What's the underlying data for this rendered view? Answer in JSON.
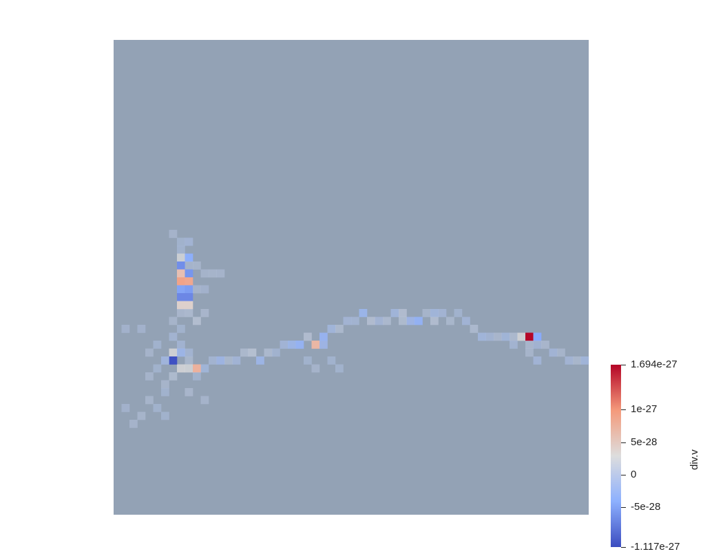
{
  "render": {
    "field_name": "div.v",
    "background_color": "#ffffff",
    "base_cell_color": "#93a2b5",
    "grid_cells": 60
  },
  "colorbar": {
    "title": "div.v",
    "max": 1.694e-27,
    "min": -1.117e-27,
    "colormap": "cool-to-warm",
    "stops": [
      "#3b4cc0",
      "#8db0fe",
      "#dddddd",
      "#f49a7b",
      "#b40426"
    ],
    "ticks": [
      {
        "value": 1.694e-27,
        "label": "1.694e-27"
      },
      {
        "value": 1e-27,
        "label": "1e-27"
      },
      {
        "value": 5e-28,
        "label": "5e-28"
      },
      {
        "value": 0,
        "label": "0"
      },
      {
        "value": -5e-28,
        "label": "-5e-28"
      },
      {
        "value": -1.117e-27,
        "label": "-1.117e-27"
      }
    ]
  },
  "features": [
    {
      "col": 8,
      "row": 25,
      "value": -5e-29
    },
    {
      "col": 8,
      "row": 26,
      "value": -6e-29
    },
    {
      "col": 9,
      "row": 25,
      "value": -1e-28
    },
    {
      "col": 8,
      "row": 27,
      "value": 2.8e-28
    },
    {
      "col": 9,
      "row": 27,
      "value": -4.2e-28
    },
    {
      "col": 8,
      "row": 28,
      "value": -6.5e-28
    },
    {
      "col": 9,
      "row": 28,
      "value": 4e-29
    },
    {
      "col": 8,
      "row": 29,
      "value": 6e-28
    },
    {
      "col": 9,
      "row": 29,
      "value": -6e-28
    },
    {
      "col": 8,
      "row": 30,
      "value": 9e-28
    },
    {
      "col": 9,
      "row": 30,
      "value": 8.5e-28
    },
    {
      "col": 8,
      "row": 31,
      "value": -5e-28
    },
    {
      "col": 9,
      "row": 31,
      "value": -5.5e-28
    },
    {
      "col": 8,
      "row": 32,
      "value": -7e-28
    },
    {
      "col": 9,
      "row": 32,
      "value": -7e-28
    },
    {
      "col": 8,
      "row": 33,
      "value": 4e-28
    },
    {
      "col": 9,
      "row": 33,
      "value": 4e-28
    },
    {
      "col": 8,
      "row": 34,
      "value": 6e-29
    },
    {
      "col": 9,
      "row": 34,
      "value": 8e-29
    },
    {
      "col": 10,
      "row": 35,
      "value": 1.4e-28
    },
    {
      "col": 11,
      "row": 34,
      "value": 6e-29
    },
    {
      "col": 7,
      "row": 37,
      "value": -8e-29
    },
    {
      "col": 8,
      "row": 38,
      "value": -9e-29
    },
    {
      "col": 7,
      "row": 39,
      "value": 3e-28
    },
    {
      "col": 8,
      "row": 39,
      "value": -2.6e-28
    },
    {
      "col": 9,
      "row": 39,
      "value": -8e-29
    },
    {
      "col": 7,
      "row": 40,
      "value": -1.08e-27
    },
    {
      "col": 6,
      "row": 40,
      "value": -1.8e-28
    },
    {
      "col": 9,
      "row": 40,
      "value": 7e-29
    },
    {
      "col": 8,
      "row": 41,
      "value": 3e-28
    },
    {
      "col": 9,
      "row": 41,
      "value": 2.8e-28
    },
    {
      "col": 10,
      "row": 41,
      "value": 7.5e-28
    },
    {
      "col": 11,
      "row": 41,
      "value": -1.4e-28
    },
    {
      "col": 12,
      "row": 40,
      "value": -8e-29
    },
    {
      "col": 13,
      "row": 40,
      "value": -2.2e-28
    },
    {
      "col": 14,
      "row": 40,
      "value": 7e-29
    },
    {
      "col": 15,
      "row": 40,
      "value": -1.2e-28
    },
    {
      "col": 16,
      "row": 39,
      "value": 9e-29
    },
    {
      "col": 17,
      "row": 39,
      "value": 1.5e-28
    },
    {
      "col": 18,
      "row": 40,
      "value": -2.5e-28
    },
    {
      "col": 19,
      "row": 39,
      "value": 8e-29
    },
    {
      "col": 20,
      "row": 39,
      "value": -7e-29
    },
    {
      "col": 21,
      "row": 38,
      "value": -1.2e-28
    },
    {
      "col": 22,
      "row": 38,
      "value": -2.5e-28
    },
    {
      "col": 23,
      "row": 38,
      "value": -3.4e-28
    },
    {
      "col": 24,
      "row": 37,
      "value": 1.2e-28
    },
    {
      "col": 25,
      "row": 38,
      "value": 6.9e-28
    },
    {
      "col": 26,
      "row": 37,
      "value": -3.2e-28
    },
    {
      "col": 26,
      "row": 38,
      "value": -2.4e-28
    },
    {
      "col": 27,
      "row": 36,
      "value": -1.6e-28
    },
    {
      "col": 28,
      "row": 36,
      "value": 9e-29
    },
    {
      "col": 29,
      "row": 35,
      "value": -1e-28
    },
    {
      "col": 30,
      "row": 35,
      "value": -8e-29
    },
    {
      "col": 31,
      "row": 34,
      "value": -2.8e-28
    },
    {
      "col": 32,
      "row": 35,
      "value": 1.2e-28
    },
    {
      "col": 33,
      "row": 35,
      "value": -1e-28
    },
    {
      "col": 34,
      "row": 35,
      "value": 8e-29
    },
    {
      "col": 35,
      "row": 34,
      "value": -1.5e-28
    },
    {
      "col": 36,
      "row": 34,
      "value": 1.2e-28
    },
    {
      "col": 37,
      "row": 35,
      "value": -2.4e-28
    },
    {
      "col": 38,
      "row": 35,
      "value": -3.6e-28
    },
    {
      "col": 39,
      "row": 34,
      "value": 5e-29
    },
    {
      "col": 40,
      "row": 34,
      "value": -1.5e-28
    },
    {
      "col": 40,
      "row": 35,
      "value": 1.2e-28
    },
    {
      "col": 41,
      "row": 34,
      "value": -1e-28
    },
    {
      "col": 42,
      "row": 35,
      "value": 7e-29
    },
    {
      "col": 43,
      "row": 34,
      "value": -6e-29
    },
    {
      "col": 44,
      "row": 35,
      "value": -1.2e-28
    },
    {
      "col": 45,
      "row": 36,
      "value": 8e-29
    },
    {
      "col": 46,
      "row": 37,
      "value": -1.6e-28
    },
    {
      "col": 47,
      "row": 37,
      "value": -9e-29
    },
    {
      "col": 48,
      "row": 37,
      "value": 6e-29
    },
    {
      "col": 49,
      "row": 37,
      "value": -1.4e-28
    },
    {
      "col": 50,
      "row": 37,
      "value": 8e-29
    },
    {
      "col": 51,
      "row": 37,
      "value": 3e-28
    },
    {
      "col": 52,
      "row": 37,
      "value": 1.68e-27
    },
    {
      "col": 53,
      "row": 37,
      "value": -4.5e-28
    },
    {
      "col": 52,
      "row": 38,
      "value": 6e-29
    },
    {
      "col": 53,
      "row": 38,
      "value": -9e-29
    },
    {
      "col": 54,
      "row": 38,
      "value": 6e-29
    },
    {
      "col": 55,
      "row": 39,
      "value": -1.2e-28
    },
    {
      "col": 56,
      "row": 39,
      "value": 5e-29
    },
    {
      "col": 57,
      "row": 40,
      "value": -1e-28
    },
    {
      "col": 58,
      "row": 40,
      "value": 7e-29
    },
    {
      "col": 59,
      "row": 40,
      "value": -1.6e-28
    },
    {
      "col": 50,
      "row": 38,
      "value": -8e-29
    },
    {
      "col": 52,
      "row": 39,
      "value": 5e-29
    },
    {
      "col": 53,
      "row": 40,
      "value": -1.2e-28
    },
    {
      "col": 6,
      "row": 43,
      "value": 5e-29
    },
    {
      "col": 7,
      "row": 42,
      "value": 1e-28
    },
    {
      "col": 6,
      "row": 44,
      "value": -6e-29
    },
    {
      "col": 4,
      "row": 45,
      "value": 5e-29
    },
    {
      "col": 5,
      "row": 46,
      "value": -5e-29
    },
    {
      "col": 3,
      "row": 47,
      "value": 5e-29
    },
    {
      "col": 6,
      "row": 47,
      "value": -5e-29
    },
    {
      "col": 9,
      "row": 44,
      "value": 6e-29
    },
    {
      "col": 10,
      "row": 42,
      "value": -5e-29
    },
    {
      "col": 1,
      "row": 36,
      "value": -4e-29
    },
    {
      "col": 3,
      "row": 36,
      "value": -4e-29
    },
    {
      "col": 4,
      "row": 39,
      "value": 4e-29
    },
    {
      "col": 5,
      "row": 38,
      "value": -6e-29
    },
    {
      "col": 10,
      "row": 28,
      "value": 5e-29
    },
    {
      "col": 11,
      "row": 29,
      "value": 4e-29
    },
    {
      "col": 12,
      "row": 29,
      "value": 5e-29
    },
    {
      "col": 13,
      "row": 29,
      "value": 4e-29
    },
    {
      "col": 11,
      "row": 31,
      "value": -4e-29
    },
    {
      "col": 10,
      "row": 31,
      "value": 4e-29
    },
    {
      "col": 7,
      "row": 24,
      "value": 4e-29
    },
    {
      "col": 8,
      "row": 36,
      "value": -5e-29
    },
    {
      "col": 7,
      "row": 35,
      "value": 5e-29
    },
    {
      "col": 5,
      "row": 41,
      "value": -5e-29
    },
    {
      "col": 4,
      "row": 42,
      "value": 4e-29
    },
    {
      "col": 36,
      "row": 35,
      "value": 1e-28
    },
    {
      "col": 24,
      "row": 40,
      "value": -5e-29
    },
    {
      "col": 27,
      "row": 40,
      "value": -6e-29
    },
    {
      "col": 28,
      "row": 41,
      "value": -5e-29
    },
    {
      "col": 25,
      "row": 41,
      "value": 4e-29
    },
    {
      "col": 2,
      "row": 48,
      "value": 4e-29
    },
    {
      "col": 1,
      "row": 46,
      "value": -4e-29
    },
    {
      "col": 11,
      "row": 45,
      "value": 4e-29
    }
  ]
}
